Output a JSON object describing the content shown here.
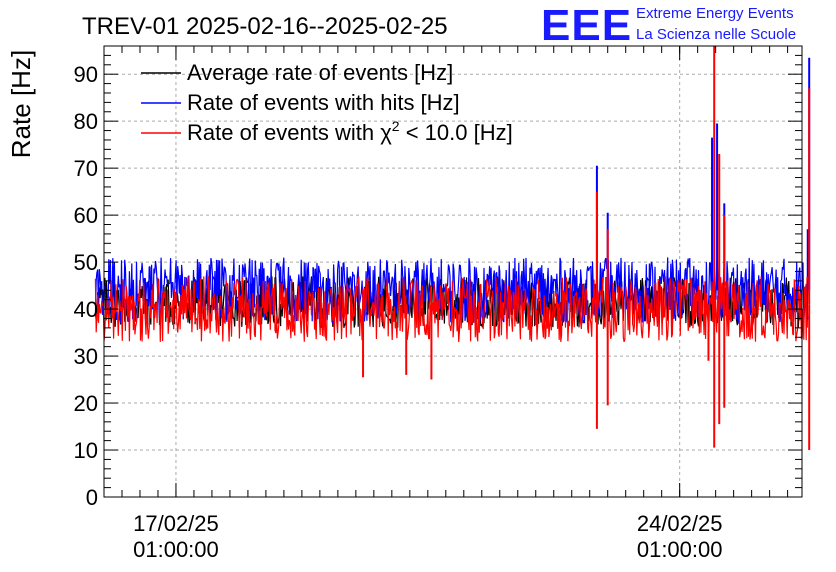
{
  "chart_data": {
    "type": "line",
    "title": "TREV-01 2025-02-16--2025-02-25",
    "ylabel": "Rate [Hz]",
    "xlabel": "",
    "ylim": [
      0,
      96
    ],
    "yticks": [
      0,
      10,
      20,
      30,
      40,
      50,
      60,
      70,
      80,
      90
    ],
    "xrange_days": [
      0,
      9.7
    ],
    "xticks": [
      {
        "day": 1.0,
        "date": "17/02/25",
        "time": "01:00:00"
      },
      {
        "day": 8.0,
        "date": "24/02/25",
        "time": "01:00:00"
      }
    ],
    "data_start_day": -0.12,
    "data_end_day": 9.78,
    "grid": true,
    "legend_position": "top-left",
    "series": [
      {
        "name": "Average rate of events [Hz]",
        "color": "#000000",
        "baseline": 42,
        "noise_low": 36,
        "noise_high": 47,
        "spikes": []
      },
      {
        "name": "Rate of events with hits [Hz]",
        "color": "#0000ff",
        "baseline": 44,
        "noise_low": 37,
        "noise_high": 51,
        "spikes": [
          {
            "day": 6.85,
            "value": 70.5
          },
          {
            "day": 7.0,
            "value": 60.5
          },
          {
            "day": 7.45,
            "value": 43
          },
          {
            "day": 8.45,
            "value": 76.5
          },
          {
            "day": 8.52,
            "value": 79.5
          },
          {
            "day": 8.62,
            "value": 62.5
          },
          {
            "day": 9.8,
            "value": 93.5
          },
          {
            "day": 9.78,
            "value": 57
          }
        ]
      },
      {
        "name": "Rate of events with χ² < 10.0 [Hz]",
        "color": "#ff0000",
        "baseline": 41,
        "noise_low": 33,
        "noise_high": 47,
        "spikes": [
          {
            "day": 6.85,
            "value": 65
          },
          {
            "day": 6.85,
            "value": 14.5
          },
          {
            "day": 7.0,
            "value": 57
          },
          {
            "day": 7.0,
            "value": 19.5
          },
          {
            "day": 8.48,
            "value": 96
          },
          {
            "day": 8.48,
            "value": 10.5
          },
          {
            "day": 8.55,
            "value": 73
          },
          {
            "day": 8.55,
            "value": 15.5
          },
          {
            "day": 8.62,
            "value": 60
          },
          {
            "day": 8.62,
            "value": 19
          },
          {
            "day": 9.8,
            "value": 87
          },
          {
            "day": 9.8,
            "value": 10
          },
          {
            "day": 8.4,
            "value": 29
          },
          {
            "day": 4.55,
            "value": 25
          },
          {
            "day": 3.6,
            "value": 25.5
          },
          {
            "day": 4.2,
            "value": 26
          }
        ]
      }
    ]
  },
  "legend": {
    "items": [
      {
        "label": "Average rate of events [Hz]"
      },
      {
        "label_prefix": "Rate of events with ",
        "label_chi": "χ",
        "label_sup": "2",
        "label_suffix": " < 10.0 [Hz]"
      }
    ],
    "item2": "Rate of events with hits [Hz]"
  },
  "logo": {
    "mark": "EEE",
    "line1": "Extreme Energy Events",
    "line2": "La Scienza nelle Scuole"
  }
}
